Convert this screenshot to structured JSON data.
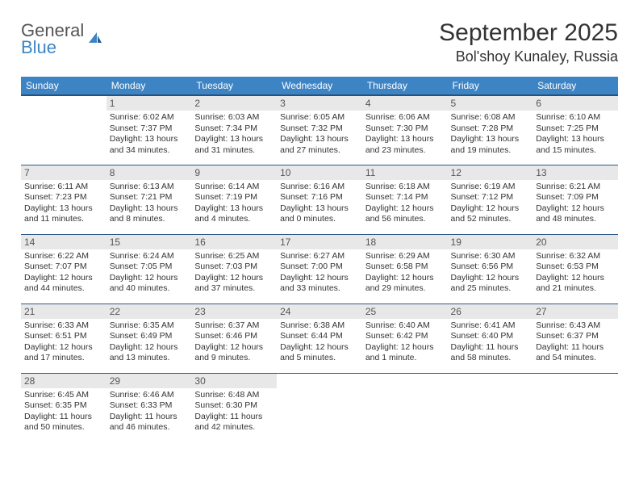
{
  "brand": {
    "line1": "General",
    "line2": "Blue"
  },
  "title": "September 2025",
  "location": "Bol'shoy Kunaley, Russia",
  "colors": {
    "header_bg": "#3d84c4",
    "header_border": "#26537e",
    "row_border": "#2f5a87",
    "daynum_bg": "#e8e8e8",
    "text": "#333333",
    "background": "#ffffff"
  },
  "typography": {
    "title_fontsize": 30,
    "location_fontsize": 18,
    "header_fontsize": 12,
    "cell_fontsize": 10.5
  },
  "weekdays": [
    "Sunday",
    "Monday",
    "Tuesday",
    "Wednesday",
    "Thursday",
    "Friday",
    "Saturday"
  ],
  "weeks": [
    [
      null,
      {
        "n": "1",
        "sr": "6:02 AM",
        "ss": "7:37 PM",
        "dl": "13 hours and 34 minutes."
      },
      {
        "n": "2",
        "sr": "6:03 AM",
        "ss": "7:34 PM",
        "dl": "13 hours and 31 minutes."
      },
      {
        "n": "3",
        "sr": "6:05 AM",
        "ss": "7:32 PM",
        "dl": "13 hours and 27 minutes."
      },
      {
        "n": "4",
        "sr": "6:06 AM",
        "ss": "7:30 PM",
        "dl": "13 hours and 23 minutes."
      },
      {
        "n": "5",
        "sr": "6:08 AM",
        "ss": "7:28 PM",
        "dl": "13 hours and 19 minutes."
      },
      {
        "n": "6",
        "sr": "6:10 AM",
        "ss": "7:25 PM",
        "dl": "13 hours and 15 minutes."
      }
    ],
    [
      {
        "n": "7",
        "sr": "6:11 AM",
        "ss": "7:23 PM",
        "dl": "13 hours and 11 minutes."
      },
      {
        "n": "8",
        "sr": "6:13 AM",
        "ss": "7:21 PM",
        "dl": "13 hours and 8 minutes."
      },
      {
        "n": "9",
        "sr": "6:14 AM",
        "ss": "7:19 PM",
        "dl": "13 hours and 4 minutes."
      },
      {
        "n": "10",
        "sr": "6:16 AM",
        "ss": "7:16 PM",
        "dl": "13 hours and 0 minutes."
      },
      {
        "n": "11",
        "sr": "6:18 AM",
        "ss": "7:14 PM",
        "dl": "12 hours and 56 minutes."
      },
      {
        "n": "12",
        "sr": "6:19 AM",
        "ss": "7:12 PM",
        "dl": "12 hours and 52 minutes."
      },
      {
        "n": "13",
        "sr": "6:21 AM",
        "ss": "7:09 PM",
        "dl": "12 hours and 48 minutes."
      }
    ],
    [
      {
        "n": "14",
        "sr": "6:22 AM",
        "ss": "7:07 PM",
        "dl": "12 hours and 44 minutes."
      },
      {
        "n": "15",
        "sr": "6:24 AM",
        "ss": "7:05 PM",
        "dl": "12 hours and 40 minutes."
      },
      {
        "n": "16",
        "sr": "6:25 AM",
        "ss": "7:03 PM",
        "dl": "12 hours and 37 minutes."
      },
      {
        "n": "17",
        "sr": "6:27 AM",
        "ss": "7:00 PM",
        "dl": "12 hours and 33 minutes."
      },
      {
        "n": "18",
        "sr": "6:29 AM",
        "ss": "6:58 PM",
        "dl": "12 hours and 29 minutes."
      },
      {
        "n": "19",
        "sr": "6:30 AM",
        "ss": "6:56 PM",
        "dl": "12 hours and 25 minutes."
      },
      {
        "n": "20",
        "sr": "6:32 AM",
        "ss": "6:53 PM",
        "dl": "12 hours and 21 minutes."
      }
    ],
    [
      {
        "n": "21",
        "sr": "6:33 AM",
        "ss": "6:51 PM",
        "dl": "12 hours and 17 minutes."
      },
      {
        "n": "22",
        "sr": "6:35 AM",
        "ss": "6:49 PM",
        "dl": "12 hours and 13 minutes."
      },
      {
        "n": "23",
        "sr": "6:37 AM",
        "ss": "6:46 PM",
        "dl": "12 hours and 9 minutes."
      },
      {
        "n": "24",
        "sr": "6:38 AM",
        "ss": "6:44 PM",
        "dl": "12 hours and 5 minutes."
      },
      {
        "n": "25",
        "sr": "6:40 AM",
        "ss": "6:42 PM",
        "dl": "12 hours and 1 minute."
      },
      {
        "n": "26",
        "sr": "6:41 AM",
        "ss": "6:40 PM",
        "dl": "11 hours and 58 minutes."
      },
      {
        "n": "27",
        "sr": "6:43 AM",
        "ss": "6:37 PM",
        "dl": "11 hours and 54 minutes."
      }
    ],
    [
      {
        "n": "28",
        "sr": "6:45 AM",
        "ss": "6:35 PM",
        "dl": "11 hours and 50 minutes."
      },
      {
        "n": "29",
        "sr": "6:46 AM",
        "ss": "6:33 PM",
        "dl": "11 hours and 46 minutes."
      },
      {
        "n": "30",
        "sr": "6:48 AM",
        "ss": "6:30 PM",
        "dl": "11 hours and 42 minutes."
      },
      null,
      null,
      null,
      null
    ]
  ],
  "labels": {
    "sunrise_prefix": "Sunrise: ",
    "sunset_prefix": "Sunset: ",
    "daylight_prefix": "Daylight: "
  }
}
